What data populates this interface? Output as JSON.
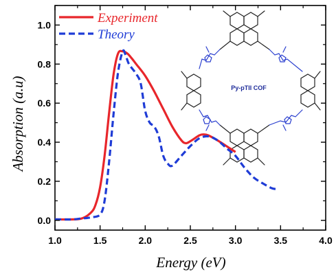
{
  "chart_data": {
    "type": "line",
    "xlabel": "Energy (eV)",
    "ylabel": "Absorption (a.u)",
    "xlim": [
      1.0,
      4.0
    ],
    "ylim": [
      -0.05,
      1.1
    ],
    "x_ticks": [
      "1.0",
      "1.5",
      "2.0",
      "2.5",
      "3.0",
      "3.5",
      "4.0"
    ],
    "y_ticks": [
      "0.0",
      "0.2",
      "0.4",
      "0.6",
      "0.8",
      "1.0"
    ],
    "legend_position": "top-left",
    "series": [
      {
        "name": "Experiment",
        "color": "#e8262b",
        "style": "solid",
        "x": [
          1.0,
          1.2,
          1.3,
          1.4,
          1.45,
          1.5,
          1.55,
          1.6,
          1.65,
          1.7,
          1.75,
          1.8,
          1.85,
          1.9,
          2.0,
          2.1,
          2.2,
          2.3,
          2.4,
          2.45,
          2.5,
          2.6,
          2.65,
          2.7,
          2.8,
          2.9,
          3.0
        ],
        "y": [
          0.005,
          0.005,
          0.01,
          0.04,
          0.08,
          0.17,
          0.33,
          0.55,
          0.75,
          0.855,
          0.865,
          0.855,
          0.83,
          0.8,
          0.74,
          0.66,
          0.57,
          0.48,
          0.41,
          0.395,
          0.405,
          0.435,
          0.44,
          0.435,
          0.41,
          0.38,
          0.35
        ]
      },
      {
        "name": "Theory",
        "color": "#1f3cd6",
        "style": "dashed",
        "x": [
          1.0,
          1.2,
          1.3,
          1.4,
          1.5,
          1.55,
          1.6,
          1.65,
          1.7,
          1.75,
          1.78,
          1.82,
          1.9,
          1.95,
          2.0,
          2.05,
          2.1,
          2.15,
          2.2,
          2.25,
          2.3,
          2.4,
          2.5,
          2.6,
          2.7,
          2.8,
          2.9,
          3.0,
          3.1,
          3.2,
          3.3,
          3.4,
          3.45
        ],
        "y": [
          0.005,
          0.005,
          0.01,
          0.015,
          0.03,
          0.1,
          0.3,
          0.55,
          0.76,
          0.865,
          0.85,
          0.8,
          0.75,
          0.7,
          0.56,
          0.5,
          0.48,
          0.43,
          0.33,
          0.29,
          0.28,
          0.33,
          0.38,
          0.42,
          0.43,
          0.41,
          0.37,
          0.33,
          0.27,
          0.22,
          0.19,
          0.165,
          0.16
        ]
      }
    ],
    "annotations": [
      {
        "text": "Py-pTII COF"
      }
    ]
  }
}
